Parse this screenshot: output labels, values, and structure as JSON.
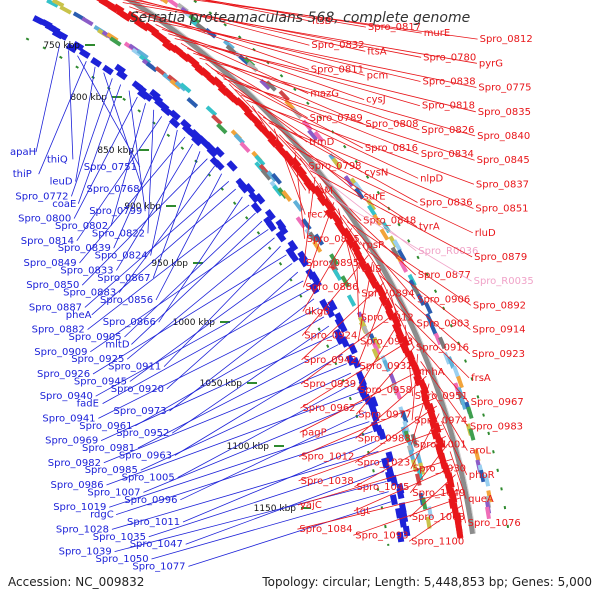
{
  "title": "Serratia proteamaculans 568, complete genome",
  "accession": "Accession: NC_009832",
  "summary": "Topology: circular; Length: 5,448,853 bp; Genes: 5,000",
  "colors": {
    "forward": "#e8161a",
    "reverse": "#1d22d8",
    "rna": "#f0a3c8",
    "backbone": "#8c8c8c",
    "tick": "#2f8a2f"
  },
  "ticks": [
    "750 kbp",
    "800 kbp",
    "850 kbp",
    "900 kbp",
    "950 kbp",
    "1000 kbp",
    "1050 kbp",
    "1100 kbp",
    "1150 kbp"
  ],
  "left_labels": [
    "apaH",
    "thiQ",
    "Spro_0751",
    "thiP",
    "leuD",
    "Spro_0768",
    "Spro_0772",
    "coaE",
    "Spro_0799",
    "Spro_0800",
    "Spro_0802",
    "Spro_0822",
    "Spro_0814",
    "Spro_0839",
    "Spro_0824",
    "Spro_0849",
    "Spro_0833",
    "Spro_0867",
    "Spro_0850",
    "Spro_0883",
    "Spro_0856",
    "Spro_0887",
    "pheA",
    "Spro_0866",
    "Spro_0882",
    "Spro_0905",
    "mltD",
    "Spro_0909",
    "Spro_0925",
    "Spro_0911",
    "Spro_0926",
    "Spro_0945",
    "Spro_0920",
    "Spro_0940",
    "fadE",
    "Spro_0973",
    "Spro_0941",
    "Spro_0961",
    "Spro_0952",
    "Spro_0969",
    "Spro_0981",
    "Spro_0963",
    "Spro_0982",
    "Spro_0985",
    "Spro_1005",
    "Spro_0986",
    "Spro_1007",
    "Spro_0996",
    "Spro_1019",
    "rdgC",
    "Spro_1011",
    "Spro_1028",
    "Spro_1035",
    "Spro_1047",
    "Spro_1039",
    "Spro_1050",
    "Spro_1077"
  ],
  "right_labels": [
    "ftsB",
    "Spro_0817",
    "murE",
    "Spro_0812",
    "Spro_0832",
    "ftsA",
    "Spro_0780",
    "pyrG",
    "Spro_0811",
    "pcm",
    "Spro_0838",
    "Spro_0775",
    "mazG",
    "cysJ",
    "Spro_0818",
    "Spro_0835",
    "Spro_0789",
    "Spro_0808",
    "Spro_0826",
    "Spro_0840",
    "trmD",
    "Spro_0816",
    "Spro_0834",
    "Spro_0845",
    "Spro_0798",
    "cysN",
    "nlpD",
    "Spro_0837",
    "rimM",
    "surE",
    "Spro_0836",
    "Spro_0851",
    "recX",
    "Spro_0848",
    "tyrA",
    "rluD",
    "Spro_0885",
    "rpsP",
    "Spro_R0036",
    "Spro_0879",
    "Spro_0895",
    "rplS",
    "Spro_0877",
    "Spro_R0035",
    "Spro_0886",
    "Spro_0894",
    "Spro_0906",
    "Spro_0892",
    "dkgB",
    "Spro_0912",
    "Spro_0903",
    "Spro_0914",
    "Spro_0924",
    "Spro_0933",
    "Spro_0916",
    "Spro_0923",
    "Spro_0942",
    "Spro_0932",
    "gmhA",
    "frsA",
    "Spro_0939",
    "Spro_0958",
    "Spro_0951",
    "Spro_0967",
    "Spro_0962",
    "Spro_0977",
    "Spro_0974",
    "Spro_0983",
    "pagP",
    "Spro_0988",
    "Spro_1001",
    "aroL",
    "Spro_1012",
    "Spro_1023",
    "Spro_1030",
    "phoR",
    "Spro_1038",
    "Spro_1045",
    "Spro_1049",
    "queA",
    "yajC",
    "tgt",
    "Spro_1068",
    "Spro_1076",
    "Spro_1084",
    "Spro_1093",
    "Spro_1100"
  ],
  "rna_labels": [
    "Spro_R0036",
    "Spro_R0035"
  ]
}
